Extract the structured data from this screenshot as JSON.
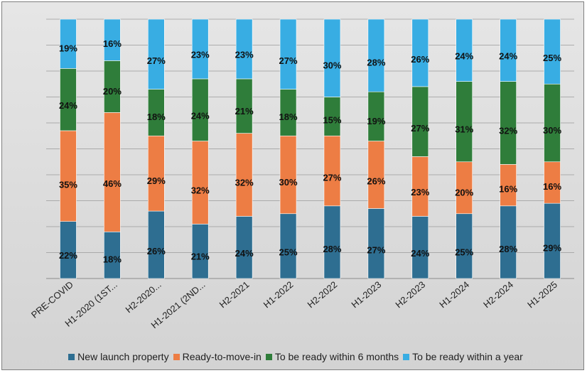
{
  "chart_data": {
    "type": "bar",
    "stacked": true,
    "percent": true,
    "categories": [
      "PRE-COVID",
      "H1-2020 (1ST...",
      "H2-2020...",
      "H1-2021 (2ND...",
      "H2-2021",
      "H1-2022",
      "H2-2022",
      "H1-2023",
      "H2-2023",
      "H1-2024",
      "H2-2024",
      "H1-2025"
    ],
    "series": [
      {
        "name": "New launch property",
        "color": "#2e6e91",
        "values": [
          22,
          18,
          26,
          21,
          24,
          25,
          28,
          27,
          24,
          25,
          28,
          29
        ]
      },
      {
        "name": "Ready-to-move-in",
        "color": "#ed7d44",
        "values": [
          35,
          46,
          29,
          32,
          32,
          30,
          27,
          26,
          23,
          20,
          16,
          16
        ]
      },
      {
        "name": "To be ready within 6 months",
        "color": "#2f7d3a",
        "values": [
          24,
          20,
          18,
          24,
          21,
          18,
          15,
          19,
          27,
          31,
          32,
          30
        ]
      },
      {
        "name": "To be ready within a year",
        "color": "#38ade3",
        "values": [
          19,
          16,
          27,
          23,
          23,
          27,
          30,
          28,
          26,
          24,
          24,
          25
        ]
      }
    ],
    "data_labels": [
      "22%",
      "18%",
      "26%",
      "21%",
      "24%",
      "25%",
      "28%",
      "27%",
      "24%",
      "25%",
      "28%",
      "29%",
      "35%",
      "46%",
      "29%",
      "32%",
      "32%",
      "30%",
      "27%",
      "26%",
      "23%",
      "20%",
      "16%",
      "16%",
      "24%",
      "20%",
      "18%",
      "24%",
      "21%",
      "18%",
      "15%",
      "19%",
      "27%",
      "31%",
      "32%",
      "30%",
      "19%",
      "16%",
      "27%",
      "23%",
      "23%",
      "27%",
      "30%",
      "28%",
      "26%",
      "24%",
      "24%",
      "25%"
    ],
    "ylim": [
      0,
      100
    ],
    "grid": true,
    "legend_position": "bottom",
    "xlabel": "",
    "ylabel": "",
    "title": ""
  }
}
